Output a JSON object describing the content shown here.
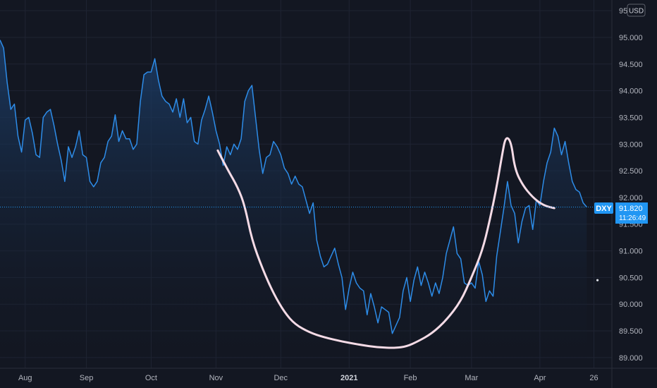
{
  "symbol": "DXY",
  "currency": "USD",
  "price_label": "91.820",
  "countdown": "11:26:49",
  "colors": {
    "background": "#131722",
    "line": "#2d8ce8",
    "area_top": "#1c3f6b",
    "badge": "#2196f3",
    "drawing": "#f5dbe6",
    "grid": "#1f2433",
    "text": "#b2b5be"
  },
  "chart_data": {
    "type": "area",
    "ylim": [
      88.8,
      95.7
    ],
    "xlim": [
      0,
      170
    ],
    "y_ticks": [
      {
        "v": 95.5,
        "label": "95.500"
      },
      {
        "v": 95.0,
        "label": "95.000"
      },
      {
        "v": 94.5,
        "label": "94.500"
      },
      {
        "v": 94.0,
        "label": "94.000"
      },
      {
        "v": 93.5,
        "label": "93.500"
      },
      {
        "v": 93.0,
        "label": "93.000"
      },
      {
        "v": 92.5,
        "label": "92.500"
      },
      {
        "v": 92.0,
        "label": "92.000"
      },
      {
        "v": 91.5,
        "label": "91.500"
      },
      {
        "v": 91.0,
        "label": "91.000"
      },
      {
        "v": 90.5,
        "label": "90.500"
      },
      {
        "v": 90.0,
        "label": "90.000"
      },
      {
        "v": 89.5,
        "label": "89.500"
      },
      {
        "v": 89.0,
        "label": "89.000"
      }
    ],
    "x_ticks": [
      {
        "t": 7,
        "label": "Aug",
        "bold": false
      },
      {
        "t": 24,
        "label": "Sep",
        "bold": false
      },
      {
        "t": 42,
        "label": "Oct",
        "bold": false
      },
      {
        "t": 60,
        "label": "Nov",
        "bold": false
      },
      {
        "t": 78,
        "label": "Dec",
        "bold": false
      },
      {
        "t": 97,
        "label": "2021",
        "bold": true
      },
      {
        "t": 114,
        "label": "Feb",
        "bold": false
      },
      {
        "t": 131,
        "label": "Mar",
        "bold": false
      },
      {
        "t": 150,
        "label": "Apr",
        "bold": false
      },
      {
        "t": 165,
        "label": "26",
        "bold": false
      }
    ],
    "last_value": 91.82,
    "series": [
      {
        "values": [
          [
            0,
            94.95
          ],
          [
            1,
            94.8
          ],
          [
            2,
            94.15
          ],
          [
            3,
            93.65
          ],
          [
            4,
            93.75
          ],
          [
            5,
            93.15
          ],
          [
            6,
            92.85
          ],
          [
            7,
            93.45
          ],
          [
            8,
            93.5
          ],
          [
            9,
            93.2
          ],
          [
            10,
            92.8
          ],
          [
            11,
            92.75
          ],
          [
            12,
            93.5
          ],
          [
            13,
            93.6
          ],
          [
            14,
            93.65
          ],
          [
            15,
            93.35
          ],
          [
            16,
            93.0
          ],
          [
            17,
            92.7
          ],
          [
            18,
            92.3
          ],
          [
            19,
            92.95
          ],
          [
            20,
            92.75
          ],
          [
            21,
            92.95
          ],
          [
            22,
            93.25
          ],
          [
            23,
            92.8
          ],
          [
            24,
            92.75
          ],
          [
            25,
            92.3
          ],
          [
            26,
            92.2
          ],
          [
            27,
            92.3
          ],
          [
            28,
            92.65
          ],
          [
            29,
            92.75
          ],
          [
            30,
            93.05
          ],
          [
            31,
            93.15
          ],
          [
            32,
            93.55
          ],
          [
            33,
            93.05
          ],
          [
            34,
            93.25
          ],
          [
            35,
            93.1
          ],
          [
            36,
            93.1
          ],
          [
            37,
            92.9
          ],
          [
            38,
            93.0
          ],
          [
            39,
            93.8
          ],
          [
            40,
            94.3
          ],
          [
            41,
            94.35
          ],
          [
            42,
            94.35
          ],
          [
            43,
            94.6
          ],
          [
            44,
            94.2
          ],
          [
            45,
            93.9
          ],
          [
            46,
            93.8
          ],
          [
            47,
            93.75
          ],
          [
            48,
            93.6
          ],
          [
            49,
            93.85
          ],
          [
            50,
            93.5
          ],
          [
            51,
            93.85
          ],
          [
            52,
            93.4
          ],
          [
            53,
            93.5
          ],
          [
            54,
            93.05
          ],
          [
            55,
            93.0
          ],
          [
            56,
            93.45
          ],
          [
            57,
            93.65
          ],
          [
            58,
            93.9
          ],
          [
            59,
            93.6
          ],
          [
            60,
            93.25
          ],
          [
            61,
            93.0
          ],
          [
            62,
            92.6
          ],
          [
            63,
            92.95
          ],
          [
            64,
            92.8
          ],
          [
            65,
            93.0
          ],
          [
            66,
            92.9
          ],
          [
            67,
            93.1
          ],
          [
            68,
            93.8
          ],
          [
            69,
            94.0
          ],
          [
            70,
            94.1
          ],
          [
            71,
            93.5
          ],
          [
            72,
            92.9
          ],
          [
            73,
            92.45
          ],
          [
            74,
            92.75
          ],
          [
            75,
            92.8
          ],
          [
            76,
            93.05
          ],
          [
            77,
            92.95
          ],
          [
            78,
            92.8
          ],
          [
            79,
            92.55
          ],
          [
            80,
            92.45
          ],
          [
            81,
            92.25
          ],
          [
            82,
            92.4
          ],
          [
            83,
            92.25
          ],
          [
            84,
            92.2
          ],
          [
            85,
            91.95
          ],
          [
            86,
            91.7
          ],
          [
            87,
            91.9
          ],
          [
            88,
            91.2
          ],
          [
            89,
            90.9
          ],
          [
            90,
            90.7
          ],
          [
            91,
            90.75
          ],
          [
            92,
            90.9
          ],
          [
            93,
            91.05
          ],
          [
            94,
            90.75
          ],
          [
            95,
            90.5
          ],
          [
            96,
            89.9
          ],
          [
            97,
            90.3
          ],
          [
            98,
            90.6
          ],
          [
            99,
            90.4
          ],
          [
            100,
            90.3
          ],
          [
            101,
            90.25
          ],
          [
            102,
            89.8
          ],
          [
            103,
            90.2
          ],
          [
            104,
            89.95
          ],
          [
            105,
            89.65
          ],
          [
            106,
            89.95
          ],
          [
            107,
            89.9
          ],
          [
            108,
            89.85
          ],
          [
            109,
            89.45
          ],
          [
            110,
            89.6
          ],
          [
            111,
            89.75
          ],
          [
            112,
            90.25
          ],
          [
            113,
            90.5
          ],
          [
            114,
            90.05
          ],
          [
            115,
            90.45
          ],
          [
            116,
            90.7
          ],
          [
            117,
            90.35
          ],
          [
            118,
            90.6
          ],
          [
            119,
            90.4
          ],
          [
            120,
            90.15
          ],
          [
            121,
            90.4
          ],
          [
            122,
            90.2
          ],
          [
            123,
            90.5
          ],
          [
            124,
            90.95
          ],
          [
            125,
            91.2
          ],
          [
            126,
            91.45
          ],
          [
            127,
            90.95
          ],
          [
            128,
            90.85
          ],
          [
            129,
            90.4
          ],
          [
            130,
            90.35
          ],
          [
            131,
            90.4
          ],
          [
            132,
            90.3
          ],
          [
            133,
            90.8
          ],
          [
            134,
            90.55
          ],
          [
            135,
            90.05
          ],
          [
            136,
            90.25
          ],
          [
            137,
            90.15
          ],
          [
            138,
            90.9
          ],
          [
            139,
            91.35
          ],
          [
            140,
            91.8
          ],
          [
            141,
            92.3
          ],
          [
            142,
            91.85
          ],
          [
            143,
            91.7
          ],
          [
            144,
            91.15
          ],
          [
            145,
            91.55
          ],
          [
            146,
            91.8
          ],
          [
            147,
            91.85
          ],
          [
            148,
            91.4
          ],
          [
            149,
            91.95
          ],
          [
            150,
            91.85
          ],
          [
            151,
            92.3
          ],
          [
            152,
            92.65
          ],
          [
            153,
            92.85
          ],
          [
            154,
            93.3
          ],
          [
            155,
            93.15
          ],
          [
            156,
            92.8
          ],
          [
            157,
            93.05
          ],
          [
            158,
            92.65
          ],
          [
            159,
            92.3
          ],
          [
            160,
            92.15
          ],
          [
            161,
            92.1
          ],
          [
            162,
            91.9
          ],
          [
            163,
            91.82
          ]
        ]
      }
    ],
    "annotation_curve": [
      [
        60.5,
        92.88
      ],
      [
        63,
        92.55
      ],
      [
        66,
        92.2
      ],
      [
        68,
        91.85
      ],
      [
        70,
        91.2
      ],
      [
        73,
        90.65
      ],
      [
        76,
        90.2
      ],
      [
        79,
        89.85
      ],
      [
        82,
        89.62
      ],
      [
        86,
        89.47
      ],
      [
        90,
        89.38
      ],
      [
        95,
        89.3
      ],
      [
        100,
        89.24
      ],
      [
        105,
        89.19
      ],
      [
        110,
        89.18
      ],
      [
        113,
        89.21
      ],
      [
        116,
        89.3
      ],
      [
        120,
        89.45
      ],
      [
        124,
        89.7
      ],
      [
        128,
        90.05
      ],
      [
        131,
        90.5
      ],
      [
        134,
        91.0
      ],
      [
        136,
        91.55
      ],
      [
        138,
        92.2
      ],
      [
        139.5,
        92.8
      ],
      [
        140.5,
        93.15
      ],
      [
        142,
        93.05
      ],
      [
        143,
        92.55
      ],
      [
        145,
        92.25
      ],
      [
        148,
        92.0
      ],
      [
        151,
        91.85
      ],
      [
        154,
        91.8
      ]
    ]
  }
}
